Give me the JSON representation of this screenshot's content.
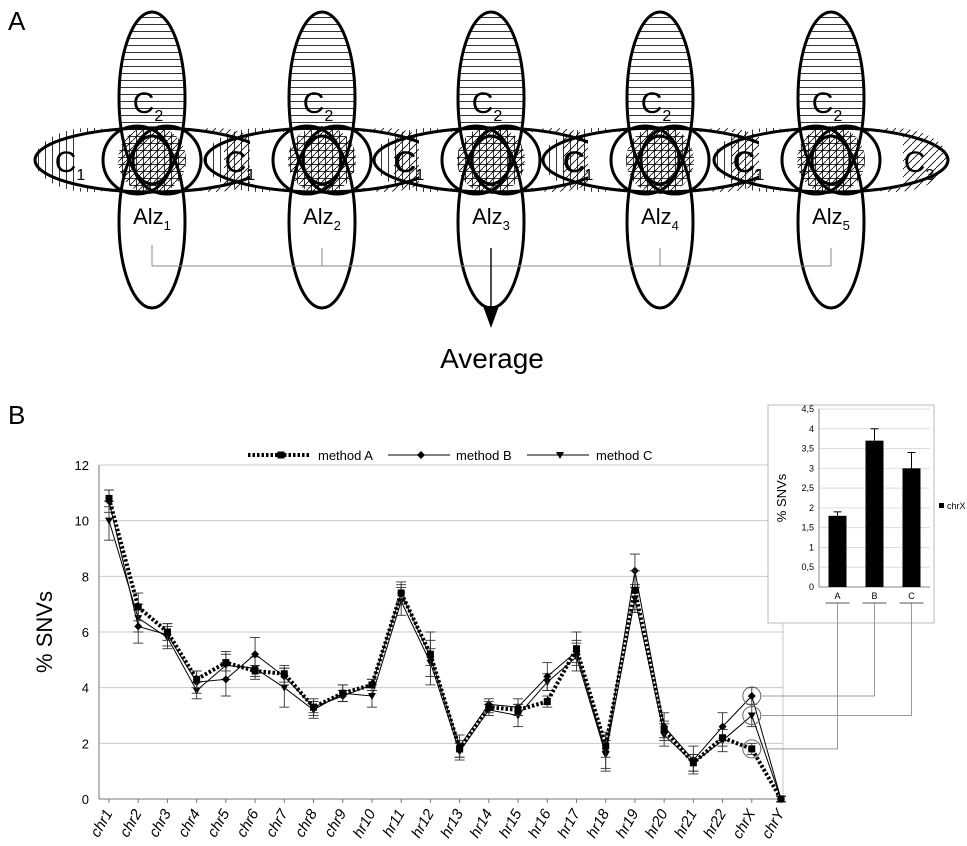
{
  "panel_a": {
    "label": "A",
    "average_label": "Average",
    "groups": [
      {
        "c1": "C",
        "c1_sub": "1",
        "c2": "C",
        "c2_sub": "2",
        "c3": "C",
        "c3_sub": "3",
        "alz": "Alz",
        "alz_sub": "1"
      },
      {
        "c1": "C",
        "c1_sub": "1",
        "c2": "C",
        "c2_sub": "2",
        "c3": "C",
        "c3_sub": "3",
        "alz": "Alz",
        "alz_sub": "2"
      },
      {
        "c1": "C",
        "c1_sub": "1",
        "c2": "C",
        "c2_sub": "2",
        "c3": "C",
        "c3_sub": "3",
        "alz": "Alz",
        "alz_sub": "3"
      },
      {
        "c1": "C",
        "c1_sub": "1",
        "c2": "C",
        "c2_sub": "2",
        "c3": "C",
        "c3_sub": "3",
        "alz": "Alz",
        "alz_sub": "4"
      },
      {
        "c1": "C",
        "c1_sub": "1",
        "c2": "C",
        "c2_sub": "2",
        "c3": "C",
        "c3_sub": "3",
        "alz": "Alz",
        "alz_sub": "5"
      }
    ]
  },
  "panel_b": {
    "label": "B"
  },
  "chart_data": [
    {
      "type": "line",
      "ylabel": "% SNVs",
      "xlabel": "",
      "ylim": [
        0,
        12
      ],
      "yticks": [
        "0",
        "2",
        "4",
        "6",
        "8",
        "10",
        "12"
      ],
      "grid": true,
      "legend_position": "top",
      "categories": [
        "chr1",
        "chr2",
        "chr3",
        "chr4",
        "chr5",
        "chr6",
        "chr7",
        "chr8",
        "chr9",
        "hr10",
        "hr11",
        "hr12",
        "hr13",
        "hr14",
        "hr15",
        "hr16",
        "hr17",
        "hr18",
        "hr19",
        "hr20",
        "hr21",
        "hr22",
        "chrX",
        "chrY"
      ],
      "series": [
        {
          "name": "method A",
          "marker": "square",
          "style": "dotted",
          "values": [
            10.8,
            6.9,
            6.0,
            4.3,
            4.9,
            4.6,
            4.5,
            3.3,
            3.8,
            4.1,
            7.4,
            5.2,
            1.8,
            3.3,
            3.2,
            3.5,
            5.4,
            1.9,
            7.5,
            2.5,
            1.3,
            2.2,
            1.8,
            0.0
          ],
          "errors": [
            0.3,
            0.5,
            0.3,
            0.3,
            0.3,
            0.2,
            0.3,
            0.3,
            0.3,
            0.2,
            0.4,
            0.8,
            0.3,
            0.2,
            0.2,
            0.2,
            0.6,
            0.4,
            0.7,
            0.3,
            0.3,
            0.3,
            0.2,
            0.1
          ]
        },
        {
          "name": "method B",
          "marker": "diamond",
          "style": "solid",
          "values": [
            10.7,
            6.2,
            5.9,
            4.2,
            4.3,
            5.2,
            4.4,
            3.3,
            3.7,
            4.1,
            7.4,
            5.1,
            1.9,
            3.4,
            3.3,
            4.4,
            5.3,
            1.7,
            8.2,
            2.6,
            1.4,
            2.6,
            3.7,
            0.0
          ],
          "errors": [
            0.4,
            0.6,
            0.4,
            0.4,
            0.6,
            0.6,
            0.3,
            0.2,
            0.2,
            0.2,
            0.3,
            0.3,
            0.4,
            0.2,
            0.3,
            0.5,
            0.4,
            0.7,
            0.6,
            0.5,
            0.5,
            0.5,
            0.3,
            0.1
          ]
        },
        {
          "name": "method C",
          "marker": "triangle-down",
          "style": "solid",
          "values": [
            10.0,
            6.5,
            5.8,
            3.9,
            4.8,
            4.7,
            4.0,
            3.2,
            3.8,
            3.7,
            7.1,
            4.9,
            1.7,
            3.2,
            3.0,
            4.2,
            5.1,
            1.6,
            7.2,
            2.3,
            1.3,
            2.1,
            3.0,
            0.0
          ],
          "errors": [
            0.7,
            0.5,
            0.4,
            0.3,
            0.5,
            0.4,
            0.7,
            0.3,
            0.3,
            0.4,
            0.5,
            0.8,
            0.3,
            0.2,
            0.4,
            0.3,
            0.5,
            0.5,
            0.5,
            0.4,
            0.3,
            0.4,
            0.4,
            0.1
          ]
        }
      ]
    },
    {
      "type": "bar",
      "ylabel": "% SNVs",
      "ylim": [
        0,
        4.5
      ],
      "yticks": [
        "0",
        "0,5",
        "1",
        "1,5",
        "2",
        "2,5",
        "3",
        "3,5",
        "4",
        "4,5"
      ],
      "categories": [
        "A",
        "B",
        "C"
      ],
      "values": [
        1.8,
        3.7,
        3.0
      ],
      "errors": [
        0.1,
        0.3,
        0.4
      ],
      "legend_position": "right",
      "series": [
        {
          "name": "chrX",
          "values": [
            1.8,
            3.7,
            3.0
          ]
        }
      ],
      "bar_color": "#000000"
    }
  ]
}
